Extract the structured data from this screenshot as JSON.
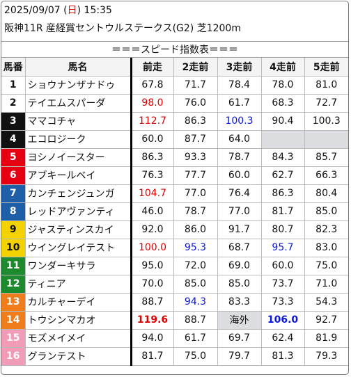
{
  "header": {
    "date": "2025/09/07",
    "dow_open": " (",
    "dow": "日",
    "dow_close": ")",
    "time": " 15:35",
    "race": "阪神11R 産経賞セントウルステークス(G2) 芝1200m"
  },
  "banner": "＝＝＝スピード指数表＝＝＝",
  "columns": [
    "馬番",
    "馬名",
    "前走",
    "2走前",
    "3走前",
    "4走前",
    "5走前"
  ],
  "colors": {
    "frame_1": "#ffffff",
    "frame_2": "#111111",
    "frame_3": "#e60012",
    "frame_4": "#1f5fa8",
    "frame_5": "#f2d200",
    "frame_6": "#1e8a2e",
    "frame_7": "#f07d1c",
    "frame_8": "#f29bb7",
    "fast": "#e00000",
    "slow_blue": "#0a14e0",
    "missing": "#dcdde1"
  },
  "rows": [
    {
      "no": "1",
      "name": "ショウナンザナドゥ",
      "frame": 1,
      "v": [
        {
          "t": "67.8"
        },
        {
          "t": "71.7"
        },
        {
          "t": "78.4"
        },
        {
          "t": "78.0"
        },
        {
          "t": "81.0"
        }
      ]
    },
    {
      "no": "2",
      "name": "テイエムスパーダ",
      "frame": 1,
      "v": [
        {
          "t": "98.0",
          "c": "red"
        },
        {
          "t": "76.0"
        },
        {
          "t": "61.7"
        },
        {
          "t": "68.3"
        },
        {
          "t": "72.7"
        }
      ]
    },
    {
      "no": "3",
      "name": "ママコチャ",
      "frame": 2,
      "v": [
        {
          "t": "112.7",
          "c": "red"
        },
        {
          "t": "86.3"
        },
        {
          "t": "100.3",
          "c": "blue"
        },
        {
          "t": "90.4"
        },
        {
          "t": "100.3"
        }
      ]
    },
    {
      "no": "4",
      "name": "エコロジーク",
      "frame": 2,
      "v": [
        {
          "t": "60.0"
        },
        {
          "t": "87.7"
        },
        {
          "t": "64.0"
        },
        {
          "t": "",
          "g": 1
        },
        {
          "t": "",
          "g": 1
        }
      ]
    },
    {
      "no": "5",
      "name": "ヨシノイースター",
      "frame": 3,
      "v": [
        {
          "t": "86.3"
        },
        {
          "t": "93.3"
        },
        {
          "t": "78.7"
        },
        {
          "t": "84.3"
        },
        {
          "t": "85.7"
        }
      ]
    },
    {
      "no": "6",
      "name": "アブキールベイ",
      "frame": 3,
      "v": [
        {
          "t": "76.3"
        },
        {
          "t": "77.7"
        },
        {
          "t": "60.0"
        },
        {
          "t": "62.7"
        },
        {
          "t": "66.3"
        }
      ]
    },
    {
      "no": "7",
      "name": "カンチェンジュンガ",
      "frame": 4,
      "v": [
        {
          "t": "104.7",
          "c": "red"
        },
        {
          "t": "77.0"
        },
        {
          "t": "76.4"
        },
        {
          "t": "86.3"
        },
        {
          "t": "80.4"
        }
      ]
    },
    {
      "no": "8",
      "name": "レッドアヴァンティ",
      "frame": 4,
      "v": [
        {
          "t": "46.0"
        },
        {
          "t": "78.7"
        },
        {
          "t": "77.0"
        },
        {
          "t": "81.7"
        },
        {
          "t": "85.0"
        }
      ]
    },
    {
      "no": "9",
      "name": "ジャスティンスカイ",
      "frame": 5,
      "v": [
        {
          "t": "92.0"
        },
        {
          "t": "86.0"
        },
        {
          "t": "91.7"
        },
        {
          "t": "80.7"
        },
        {
          "t": "82.3"
        }
      ]
    },
    {
      "no": "10",
      "name": "ウイングレイテスト",
      "frame": 5,
      "v": [
        {
          "t": "100.0",
          "c": "red"
        },
        {
          "t": "95.3",
          "c": "blue"
        },
        {
          "t": "68.7"
        },
        {
          "t": "95.7",
          "c": "blue"
        },
        {
          "t": "83.0"
        }
      ]
    },
    {
      "no": "11",
      "name": "ワンダーキサラ",
      "frame": 6,
      "v": [
        {
          "t": "95.0"
        },
        {
          "t": "72.0"
        },
        {
          "t": "69.0"
        },
        {
          "t": "60.0"
        },
        {
          "t": "75.0"
        }
      ]
    },
    {
      "no": "12",
      "name": "ティニア",
      "frame": 6,
      "v": [
        {
          "t": "70.0"
        },
        {
          "t": "85.0"
        },
        {
          "t": "85.0"
        },
        {
          "t": "73.7"
        },
        {
          "t": "71.0"
        }
      ]
    },
    {
      "no": "13",
      "name": "カルチャーデイ",
      "frame": 7,
      "v": [
        {
          "t": "88.7"
        },
        {
          "t": "94.3",
          "c": "blue"
        },
        {
          "t": "83.3"
        },
        {
          "t": "73.3"
        },
        {
          "t": "54.3"
        }
      ]
    },
    {
      "no": "14",
      "name": "トウシンマカオ",
      "frame": 7,
      "v": [
        {
          "t": "119.6",
          "c": "red",
          "b": 1
        },
        {
          "t": "88.7"
        },
        {
          "t": "海外",
          "g": 1
        },
        {
          "t": "106.0",
          "c": "blue",
          "b": 1
        },
        {
          "t": "92.7"
        }
      ]
    },
    {
      "no": "15",
      "name": "モズメイメイ",
      "frame": 8,
      "v": [
        {
          "t": "94.0"
        },
        {
          "t": "61.7"
        },
        {
          "t": "69.7"
        },
        {
          "t": "62.4"
        },
        {
          "t": "81.9"
        }
      ]
    },
    {
      "no": "16",
      "name": "グランテスト",
      "frame": 8,
      "v": [
        {
          "t": "81.7"
        },
        {
          "t": "75.0"
        },
        {
          "t": "79.7"
        },
        {
          "t": "81.3"
        },
        {
          "t": "79.3"
        }
      ]
    }
  ]
}
